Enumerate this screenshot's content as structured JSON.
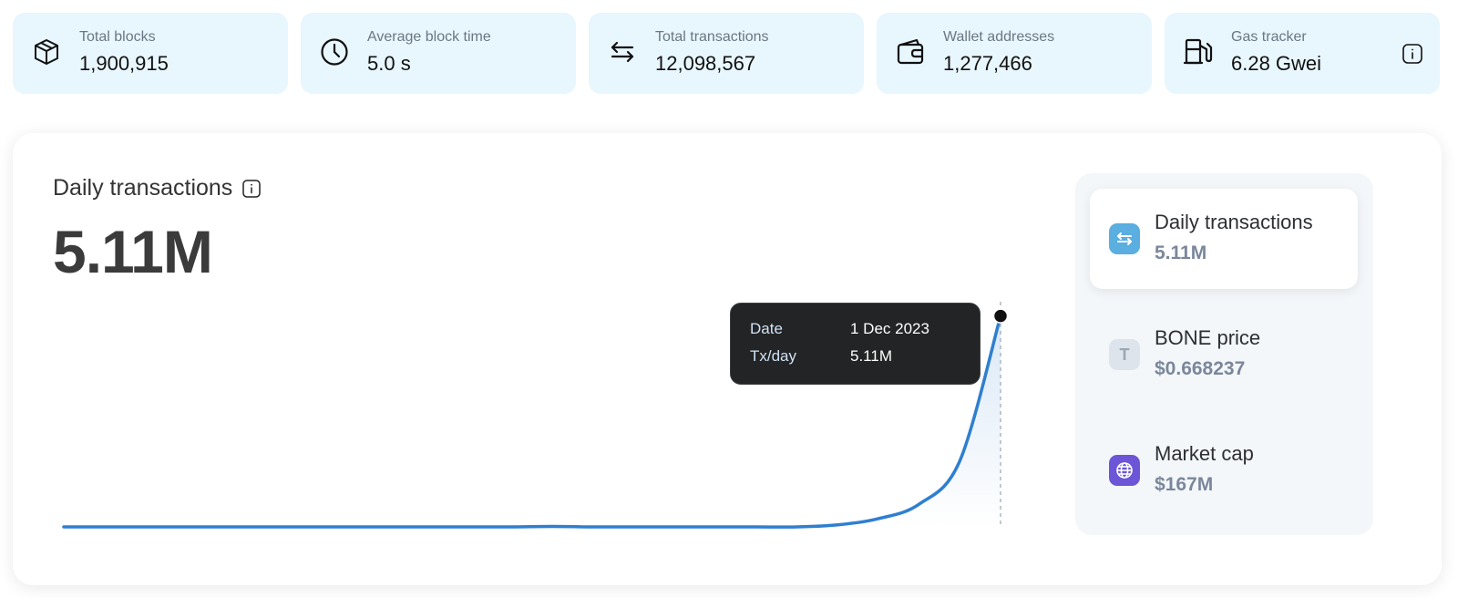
{
  "stats": [
    {
      "icon": "cube-icon",
      "label": "Total blocks",
      "value": "1,900,915"
    },
    {
      "icon": "clock-icon",
      "label": "Average block time",
      "value": "5.0 s"
    },
    {
      "icon": "swap-arrows-icon",
      "label": "Total transactions",
      "value": "12,098,567"
    },
    {
      "icon": "wallet-icon",
      "label": "Wallet addresses",
      "value": "1,277,466"
    },
    {
      "icon": "gas-pump-icon",
      "label": "Gas tracker",
      "value": "6.28 Gwei"
    }
  ],
  "main_chart": {
    "title": "Daily transactions",
    "value": "5.11M",
    "tooltip": {
      "date_label": "Date",
      "date_value": "1 Dec 2023",
      "tx_label": "Tx/day",
      "tx_value": "5.11M"
    }
  },
  "side": {
    "items": [
      {
        "icon": "swap-arrows-icon",
        "label": "Daily transactions",
        "value": "5.11M",
        "active": true,
        "color": "#5aaee0"
      },
      {
        "icon": "token-t-icon",
        "icon_text": "T",
        "label": "BONE price",
        "value": "$0.668237",
        "active": false,
        "color": "#dde4ec"
      },
      {
        "icon": "globe-icon",
        "label": "Market cap",
        "value": "$167M",
        "active": false,
        "color": "#6c55d6"
      }
    ]
  },
  "colors": {
    "stat_bg": "#e8f6fd",
    "line": "#2f7fd0",
    "tooltip_bg": "#232425"
  },
  "chart_data": {
    "type": "line",
    "title": "Daily transactions",
    "x": [
      "",
      "",
      "",
      "",
      "",
      "",
      "",
      "",
      "",
      "",
      "",
      "",
      "",
      "",
      "",
      "",
      "",
      "",
      "",
      "",
      "",
      "",
      "",
      "1 Dec 2023"
    ],
    "y": [
      0.0,
      0.0,
      0.0,
      0.0,
      0.0,
      0.0,
      0.0,
      0.0,
      0.0,
      0.0,
      0.0,
      0.0,
      0.01,
      0.0,
      0.0,
      0.0,
      0.0,
      0.0,
      0.0,
      0.05,
      0.2,
      0.55,
      1.6,
      5.11
    ],
    "series": [
      {
        "name": "Tx/day"
      }
    ],
    "ylim": [
      0,
      5.5
    ],
    "grid": false,
    "highlight": {
      "x": "1 Dec 2023",
      "y": 5.11
    }
  }
}
